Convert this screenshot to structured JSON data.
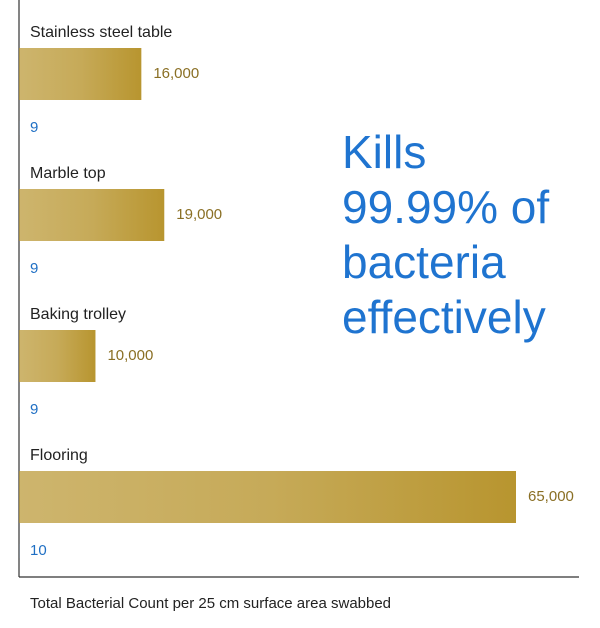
{
  "chart_data": {
    "type": "bar",
    "orientation": "horizontal",
    "categories": [
      "Stainless steel table",
      "Marble top",
      "Baking trolley",
      "Flooring"
    ],
    "series": [
      {
        "color": "#b8952f",
        "values": [
          16000,
          19000,
          10000,
          65000
        ],
        "value_labels": [
          "16,000",
          "19,000",
          "10,000",
          "65,000"
        ],
        "label_color": "#8a6f24"
      },
      {
        "color": "#1f6fc4",
        "values": [
          9,
          9,
          9,
          10
        ],
        "label_color": "#1f6fc4"
      }
    ],
    "annotation": [
      "Kills",
      "99.99% of",
      "bacteria",
      "effectively"
    ],
    "xlabel": "Total Bacterial Count per 25 cm surface area swabbed"
  }
}
